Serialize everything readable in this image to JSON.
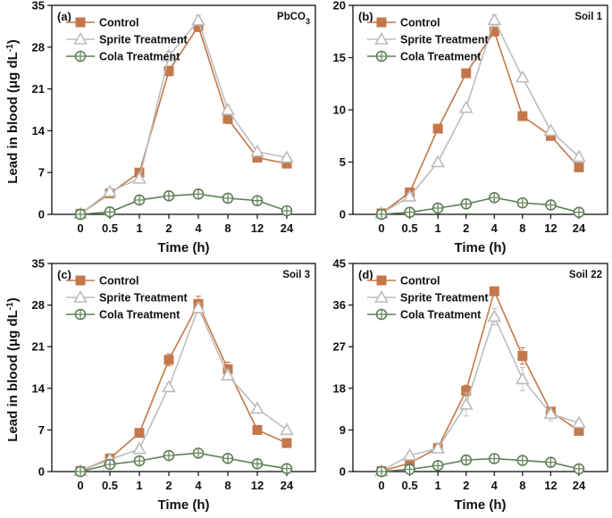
{
  "figure": {
    "ylabel_main": "Lead in blood (μg dL",
    "ylabel_sup": "-1",
    "ylabel_close": ")"
  },
  "colors": {
    "control": "#C4784A",
    "sprite": "#BDBDBD",
    "cola": "#5E7F56"
  },
  "chart_data": [
    {
      "type": "line",
      "panel_label": "(a)",
      "title": "PbCO",
      "title_sub": "3",
      "xlabel": "Time (h)",
      "categories": [
        "0",
        "0.5",
        "1",
        "2",
        "4",
        "8",
        "12",
        "24"
      ],
      "ylim": [
        0,
        35
      ],
      "yticks": [
        0,
        7,
        14,
        21,
        28,
        35
      ],
      "series": [
        {
          "name": "Control",
          "values": [
            0.1,
            3.5,
            7.0,
            24.0,
            31.5,
            16.0,
            9.5,
            8.5
          ],
          "errors": [
            0.2,
            0.4,
            0.6,
            0.8,
            0.9,
            0.8,
            0.5,
            0.5
          ]
        },
        {
          "name": "Sprite Treatment",
          "values": [
            0.1,
            3.8,
            6.0,
            26.5,
            32.5,
            17.5,
            10.5,
            9.5
          ],
          "errors": [
            0.2,
            0.4,
            0.5,
            0.8,
            0.8,
            0.8,
            0.5,
            0.5
          ]
        },
        {
          "name": "Cola Treatment",
          "values": [
            0.0,
            0.4,
            2.4,
            3.1,
            3.4,
            2.7,
            2.3,
            0.6
          ],
          "errors": [
            0.1,
            0.2,
            0.3,
            0.3,
            0.3,
            0.3,
            0.3,
            0.2
          ]
        }
      ]
    },
    {
      "type": "line",
      "panel_label": "(b)",
      "title": "Soil 1",
      "title_sub": "",
      "xlabel": "Time (h)",
      "categories": [
        "0",
        "0.5",
        "1",
        "2",
        "4",
        "8",
        "12",
        "24"
      ],
      "ylim": [
        0,
        20
      ],
      "yticks": [
        0,
        5,
        10,
        15,
        20
      ],
      "series": [
        {
          "name": "Control",
          "values": [
            0.1,
            2.1,
            8.2,
            13.5,
            17.5,
            9.4,
            7.5,
            4.5
          ],
          "errors": [
            0.1,
            0.3,
            0.3,
            0.4,
            0.4,
            0.3,
            0.3,
            0.3
          ]
        },
        {
          "name": "Sprite Treatment",
          "values": [
            0.1,
            1.7,
            5.0,
            10.2,
            18.6,
            13.1,
            8.0,
            5.5
          ],
          "errors": [
            0.1,
            0.3,
            0.3,
            0.3,
            0.5,
            0.3,
            0.3,
            0.3
          ]
        },
        {
          "name": "Cola Treatment",
          "values": [
            0.0,
            0.2,
            0.6,
            1.0,
            1.6,
            1.1,
            0.9,
            0.2
          ],
          "errors": [
            0.1,
            0.1,
            0.1,
            0.1,
            0.2,
            0.1,
            0.1,
            0.1
          ]
        }
      ]
    },
    {
      "type": "line",
      "panel_label": "(c)",
      "title": "Soil 3",
      "title_sub": "",
      "xlabel": "Time (h)",
      "categories": [
        "0",
        "0.5",
        "1",
        "2",
        "4",
        "8",
        "12",
        "24"
      ],
      "ylim": [
        0,
        35
      ],
      "yticks": [
        0,
        7,
        14,
        21,
        28,
        35
      ],
      "series": [
        {
          "name": "Control",
          "values": [
            0.1,
            2.2,
            6.5,
            18.8,
            28.2,
            17.2,
            7.0,
            4.8
          ],
          "errors": [
            0.2,
            0.4,
            0.6,
            1.0,
            1.3,
            1.2,
            0.5,
            0.5
          ]
        },
        {
          "name": "Sprite Treatment",
          "values": [
            0.1,
            2.0,
            3.8,
            14.2,
            27.5,
            16.2,
            10.6,
            7.0
          ],
          "errors": [
            0.2,
            0.4,
            0.5,
            0.6,
            0.8,
            0.8,
            0.5,
            0.5
          ]
        },
        {
          "name": "Cola Treatment",
          "values": [
            0.0,
            1.2,
            1.8,
            2.7,
            3.1,
            2.2,
            1.3,
            0.5
          ],
          "errors": [
            0.1,
            0.3,
            0.3,
            0.3,
            0.3,
            0.3,
            0.3,
            0.2
          ]
        }
      ]
    },
    {
      "type": "line",
      "panel_label": "(d)",
      "title": "Soil 22",
      "title_sub": "",
      "xlabel": "Time (h)",
      "categories": [
        "0",
        "0.5",
        "1",
        "2",
        "4",
        "8",
        "12",
        "24"
      ],
      "ylim": [
        0,
        45
      ],
      "yticks": [
        0,
        9,
        18,
        27,
        36,
        45
      ],
      "series": [
        {
          "name": "Control",
          "values": [
            0.1,
            1.8,
            5.1,
            17.5,
            39.0,
            25.0,
            13.0,
            8.8
          ],
          "errors": [
            0.2,
            0.5,
            0.6,
            1.2,
            0.8,
            1.8,
            1.0,
            0.6
          ]
        },
        {
          "name": "Sprite Treatment",
          "values": [
            0.1,
            3.5,
            5.0,
            14.5,
            33.5,
            20.0,
            12.5,
            10.5
          ],
          "errors": [
            0.2,
            0.5,
            0.6,
            2.5,
            1.8,
            2.5,
            1.5,
            0.6
          ]
        },
        {
          "name": "Cola Treatment",
          "values": [
            0.0,
            0.5,
            1.3,
            2.5,
            2.8,
            2.4,
            2.0,
            0.6
          ],
          "errors": [
            0.1,
            0.3,
            0.3,
            0.3,
            0.3,
            0.3,
            0.3,
            0.2
          ]
        }
      ]
    }
  ]
}
